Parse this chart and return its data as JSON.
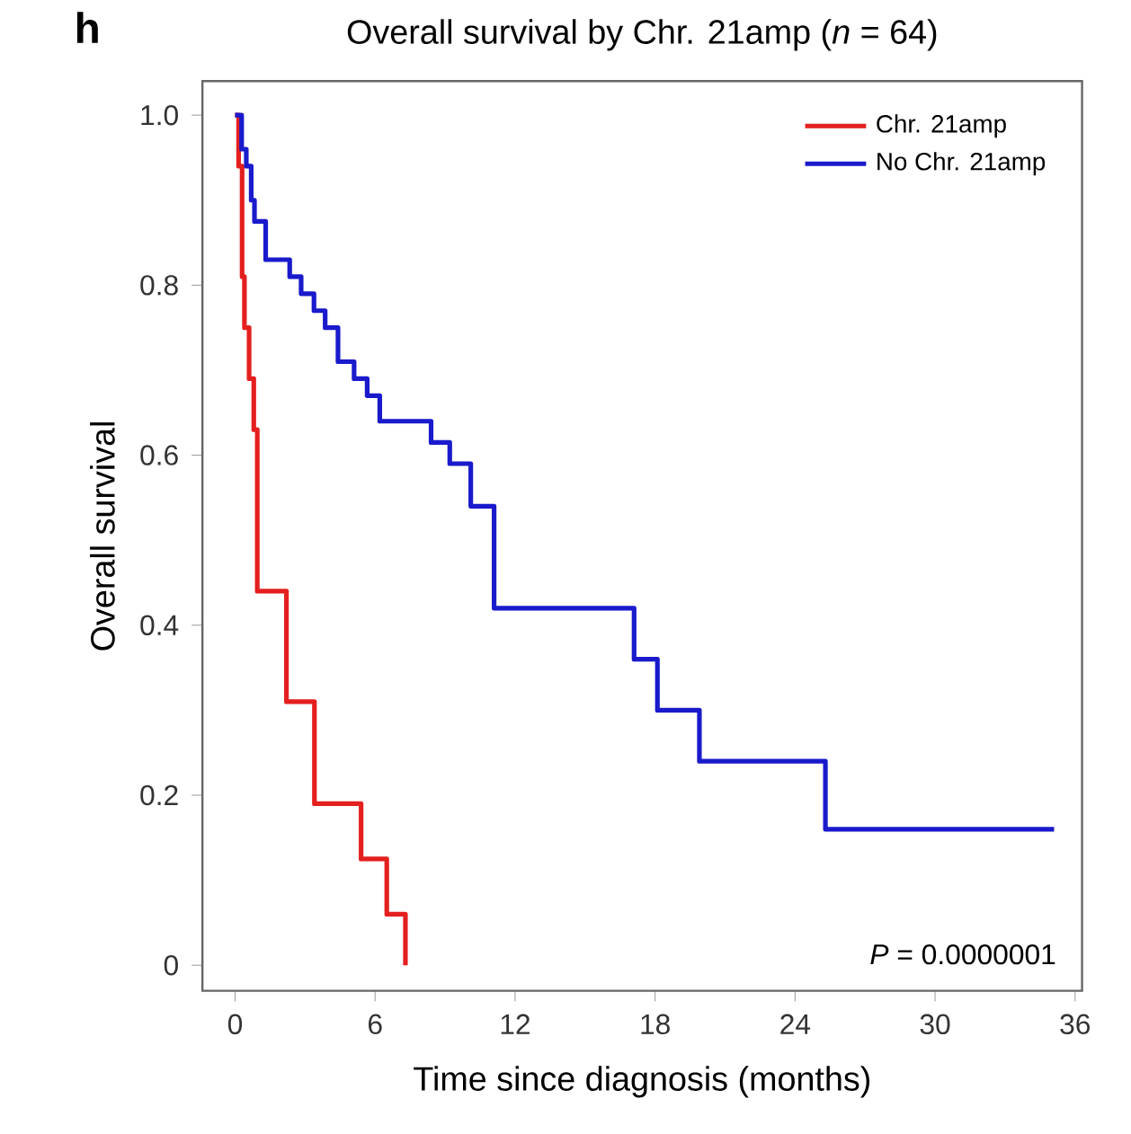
{
  "chart_data": {
    "type": "step",
    "title": "Overall survival by Chr. 21amp (*n* = 64)",
    "xlabel": "Time since diagnosis (months)",
    "ylabel": "Overall survival",
    "annotations": [
      "**h**",
      "*P* = 0.0000001"
    ],
    "xlim": [
      -1.4,
      36.3
    ],
    "ylim": [
      -0.03,
      1.04
    ],
    "xticks": [
      0,
      6,
      12,
      18,
      24,
      30,
      36
    ],
    "yticks": [
      {
        "value": 0,
        "label": "0"
      },
      {
        "value": 0.2,
        "label": "0.2"
      },
      {
        "value": 0.4,
        "label": "0.4"
      },
      {
        "value": 0.6,
        "label": "0.6"
      },
      {
        "value": 0.8,
        "label": "0.8"
      },
      {
        "value": 1.0,
        "label": "1.0"
      }
    ],
    "grid": false,
    "legend": "top right",
    "line_style": "solid",
    "series": [
      {
        "name": "Chr. 21amp",
        "color": "#e3201f",
        "x": [
          0,
          0.15,
          0.3,
          0.4,
          0.6,
          0.8,
          0.95,
          2.2,
          3.4,
          5.4,
          6.5,
          7.3
        ],
        "values": [
          1.0,
          0.94,
          0.81,
          0.75,
          0.69,
          0.63,
          0.44,
          0.31,
          0.19,
          0.125,
          0.06,
          0.0
        ]
      },
      {
        "name": "No Chr. 21amp",
        "color": "#1a1acc",
        "x": [
          0,
          0.28,
          0.48,
          0.69,
          0.83,
          1.31,
          2.34,
          2.83,
          3.38,
          3.86,
          4.41,
          5.1,
          5.66,
          6.2,
          8.4,
          9.2,
          10.1,
          11.1,
          17.1,
          18.1,
          19.9,
          25.3,
          35.1
        ],
        "values": [
          1.0,
          0.96,
          0.94,
          0.9,
          0.875,
          0.83,
          0.81,
          0.79,
          0.77,
          0.75,
          0.71,
          0.69,
          0.67,
          0.64,
          0.615,
          0.59,
          0.54,
          0.42,
          0.36,
          0.3,
          0.24,
          0.16,
          0.16
        ]
      }
    ]
  }
}
